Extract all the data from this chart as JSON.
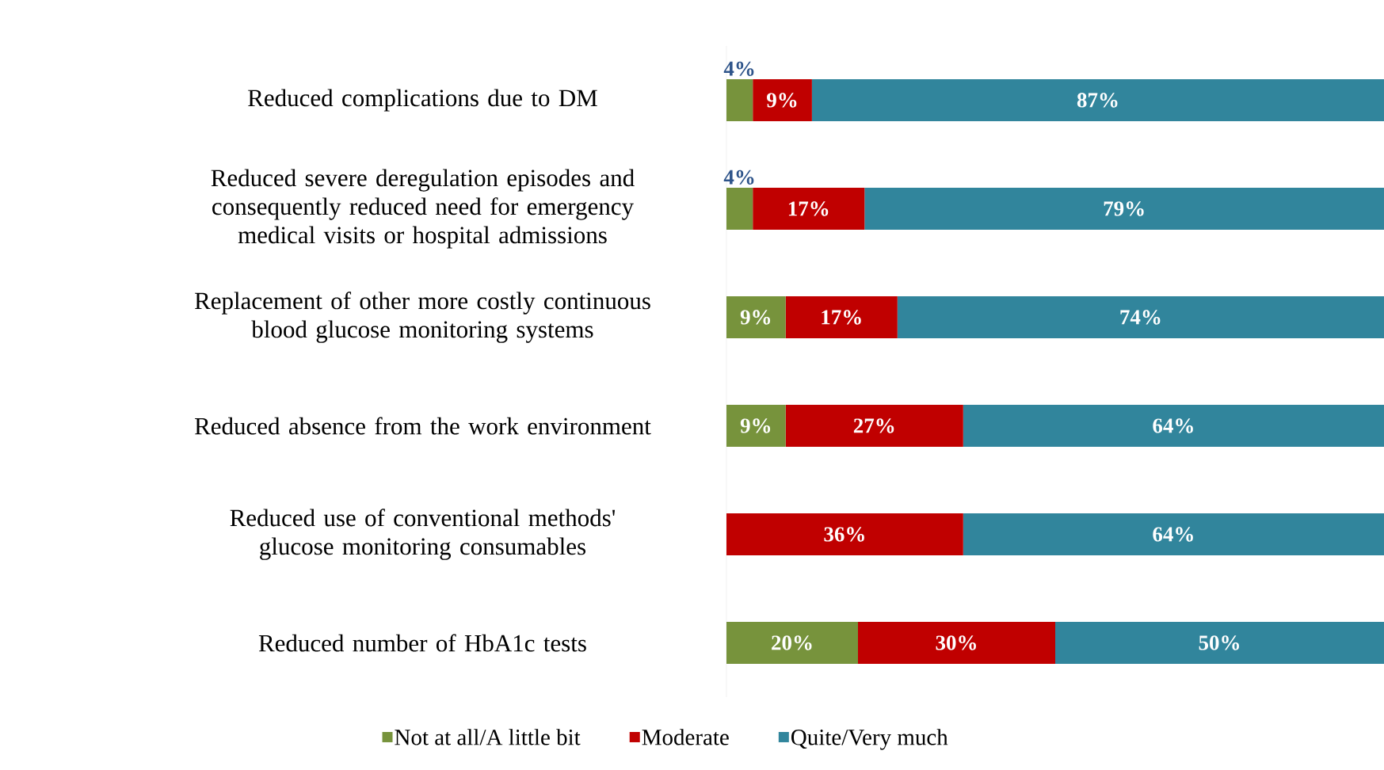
{
  "chart_data": {
    "type": "bar",
    "orientation": "horizontal",
    "stacked": true,
    "legend": "bottom",
    "categories": [
      "Reduced complications due to DM",
      "Reduced severe deregulation episodes and consequently reduced need for emergency medical visits or hospital admissions",
      "Replacement of other more costly continuous blood glucose monitoring systems",
      "Reduced absence from the work environment",
      "Reduced use of conventional methods' glucose monitoring consumables",
      "Reduced number of HbA1c tests"
    ],
    "series": [
      {
        "name": "Not at all/A little bit",
        "color": "#77933c",
        "values": [
          4,
          4,
          9,
          9,
          null,
          20
        ],
        "value_labels": [
          "4%",
          "4%",
          "9%",
          "9%",
          null,
          "20%"
        ]
      },
      {
        "name": "Moderate",
        "color": "#c00000",
        "values": [
          9,
          17,
          17,
          27,
          36,
          30
        ],
        "value_labels": [
          "9%",
          "17%",
          "17%",
          "27%",
          "36%",
          "30%"
        ]
      },
      {
        "name": "Quite/Very much",
        "color": "#31859c",
        "values": [
          87,
          79,
          74,
          64,
          64,
          50
        ],
        "value_labels": [
          "87%",
          "79%",
          "74%",
          "64%",
          "64%",
          "50%"
        ]
      }
    ]
  }
}
